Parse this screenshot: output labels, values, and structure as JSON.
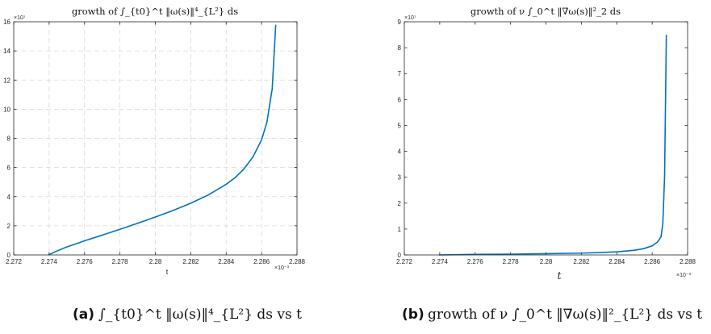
{
  "chart_data": [
    {
      "type": "line",
      "title": "growth of ∫_{t0}^t ‖ω(s)‖⁴_{L²} ds",
      "xlabel": "t",
      "ylabel": "",
      "x_exponent": "×10⁻³",
      "y_exponent": "×10⁷",
      "xlim": [
        2.272,
        2.288
      ],
      "ylim": [
        0,
        16
      ],
      "x_ticks": [
        2.272,
        2.274,
        2.276,
        2.278,
        2.28,
        2.282,
        2.284,
        2.286,
        2.288
      ],
      "x_tick_labels": [
        "2.272",
        "2.274",
        "2.276",
        "2.278",
        "2.28",
        "2.282",
        "2.284",
        "2.286",
        "2.288"
      ],
      "y_ticks": [
        0,
        2,
        4,
        6,
        8,
        10,
        12,
        14,
        16
      ],
      "y_tick_labels": [
        "0",
        "2",
        "4",
        "6",
        "8",
        "10",
        "12",
        "14",
        "16"
      ],
      "grid": true,
      "grid_style": "dashed",
      "line_color": "#0072BD",
      "series": [
        {
          "x": [
            2.27395,
            2.2745,
            2.275,
            2.276,
            2.277,
            2.278,
            2.279,
            2.28,
            2.281,
            2.282,
            2.283,
            2.284,
            2.2845,
            2.285,
            2.2855,
            2.286,
            2.2863,
            2.2866,
            2.2868
          ],
          "y": [
            0.0,
            0.3,
            0.55,
            0.97,
            1.36,
            1.76,
            2.17,
            2.6,
            3.05,
            3.55,
            4.12,
            4.85,
            5.3,
            5.9,
            6.7,
            7.9,
            9.1,
            11.4,
            15.8
          ]
        }
      ]
    },
    {
      "type": "line",
      "title": "growth of ν ∫_0^t ‖∇ω(s)‖²_2 ds",
      "xlabel": "t",
      "ylabel": "",
      "x_exponent": "×10⁻³",
      "y_exponent": "×10⁷",
      "xlim": [
        2.272,
        2.288
      ],
      "ylim": [
        0,
        9
      ],
      "x_ticks": [
        2.272,
        2.274,
        2.276,
        2.278,
        2.28,
        2.282,
        2.284,
        2.286,
        2.288
      ],
      "x_tick_labels": [
        "2.272",
        "2.274",
        "2.276",
        "2.278",
        "2.28",
        "2.282",
        "2.284",
        "2.286",
        "2.288"
      ],
      "y_ticks": [
        0,
        1,
        2,
        3,
        4,
        5,
        6,
        7,
        8,
        9
      ],
      "y_tick_labels": [
        "0",
        "1",
        "2",
        "3",
        "4",
        "5",
        "6",
        "7",
        "8",
        "9"
      ],
      "grid": false,
      "line_color": "#0072BD",
      "series": [
        {
          "x": [
            2.27395,
            2.275,
            2.276,
            2.278,
            2.28,
            2.282,
            2.283,
            2.284,
            2.285,
            2.2855,
            2.286,
            2.2863,
            2.2865,
            2.2866,
            2.2867,
            2.2868
          ],
          "y": [
            0.0,
            0.01,
            0.02,
            0.03,
            0.05,
            0.07,
            0.09,
            0.12,
            0.18,
            0.24,
            0.35,
            0.5,
            0.7,
            1.2,
            3.0,
            8.5
          ]
        }
      ]
    }
  ],
  "captions": [
    {
      "label": "(a)",
      "text": "∫_{t0}^t ‖ω(s)‖⁴_{L²} ds vs t"
    },
    {
      "label": "(b)",
      "text": "growth of ν ∫_0^t ‖∇ω(s)‖²_{L²} ds vs t"
    }
  ]
}
